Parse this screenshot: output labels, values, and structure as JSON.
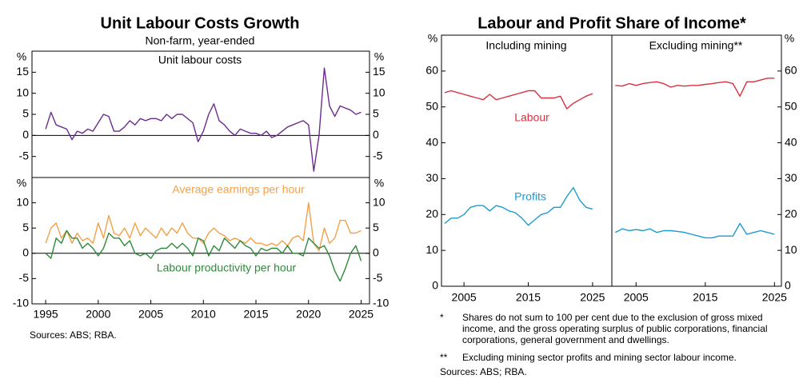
{
  "chart_data": [
    {
      "type": "line",
      "title": "Unit Labour Costs Growth",
      "subtitle": "Non-farm, year-ended",
      "y_unit": "%",
      "xlim": [
        1993.7,
        2025.8
      ],
      "ylim": [
        -10,
        20
      ],
      "yticks": [
        -5,
        0,
        5,
        10,
        15
      ],
      "x": [
        1995,
        1995.5,
        1996,
        1996.5,
        1997,
        1997.5,
        1998,
        1998.5,
        1999,
        1999.5,
        2000,
        2000.5,
        2001,
        2001.5,
        2002,
        2002.5,
        2003,
        2003.5,
        2004,
        2004.5,
        2005,
        2005.5,
        2006,
        2006.5,
        2007,
        2007.5,
        2008,
        2008.5,
        2009,
        2009.5,
        2010,
        2010.5,
        2011,
        2011.5,
        2012,
        2012.5,
        2013,
        2013.5,
        2014,
        2014.5,
        2015,
        2015.5,
        2016,
        2016.5,
        2017,
        2017.5,
        2018,
        2018.5,
        2019,
        2019.5,
        2020,
        2020.5,
        2021,
        2021.5,
        2022,
        2022.5,
        2023,
        2023.5,
        2024,
        2024.5,
        2025
      ],
      "series": [
        {
          "name": "Unit labour costs",
          "color": "#6a2c8e",
          "values": [
            1.5,
            5.5,
            2.5,
            2,
            1.5,
            -1,
            1,
            0.5,
            1.5,
            1,
            3,
            5,
            4.5,
            1,
            1,
            2,
            3.5,
            2.5,
            4,
            3.5,
            4,
            4,
            3.5,
            5,
            4,
            5,
            5,
            4,
            3,
            -1.5,
            1,
            5,
            7.5,
            3.5,
            2.5,
            1,
            0,
            1.5,
            1,
            0.5,
            0.5,
            0,
            1,
            -0.5,
            0,
            1,
            2,
            2.5,
            3,
            3.5,
            2.5,
            -8.5,
            0,
            16,
            7,
            4.5,
            7,
            6.5,
            6,
            5,
            5.5
          ]
        }
      ]
    },
    {
      "type": "line",
      "y_unit": "%",
      "source": "Sources: ABS; RBA.",
      "xlim": [
        1993.7,
        2025.8
      ],
      "xticks": [
        1995,
        2000,
        2005,
        2010,
        2015,
        2020,
        2025
      ],
      "ylim": [
        -10,
        15
      ],
      "yticks": [
        -10,
        -5,
        0,
        5,
        10
      ],
      "x": [
        1995,
        1995.5,
        1996,
        1996.5,
        1997,
        1997.5,
        1998,
        1998.5,
        1999,
        1999.5,
        2000,
        2000.5,
        2001,
        2001.5,
        2002,
        2002.5,
        2003,
        2003.5,
        2004,
        2004.5,
        2005,
        2005.5,
        2006,
        2006.5,
        2007,
        2007.5,
        2008,
        2008.5,
        2009,
        2009.5,
        2010,
        2010.5,
        2011,
        2011.5,
        2012,
        2012.5,
        2013,
        2013.5,
        2014,
        2014.5,
        2015,
        2015.5,
        2016,
        2016.5,
        2017,
        2017.5,
        2018,
        2018.5,
        2019,
        2019.5,
        2020,
        2020.5,
        2021,
        2021.5,
        2022,
        2022.5,
        2023,
        2023.5,
        2024,
        2024.5,
        2025
      ],
      "series": [
        {
          "name": "Average earnings per hour",
          "color": "#f4a04a",
          "values": [
            2,
            5,
            6,
            3,
            4.5,
            2,
            4,
            2.5,
            3,
            2,
            6,
            3,
            7.5,
            4,
            3.5,
            5,
            3,
            6,
            3.5,
            5,
            4,
            3,
            5,
            3.5,
            5,
            4,
            6,
            4,
            3,
            3,
            2,
            4,
            5,
            4,
            3.5,
            2.5,
            3,
            2.5,
            2,
            3,
            2,
            2,
            1.5,
            2,
            1.5,
            2.5,
            1.5,
            3,
            3.5,
            2.5,
            10,
            2,
            0.5,
            5,
            2,
            3,
            6.5,
            6.5,
            4,
            4,
            4.5
          ]
        },
        {
          "name": "Labour productivity per hour",
          "color": "#2e8b3a",
          "values": [
            0,
            -1,
            3,
            2,
            4.5,
            3,
            3,
            1,
            2,
            1,
            -0.5,
            1,
            4,
            3,
            3,
            1.5,
            2.5,
            0,
            -0.5,
            0,
            -1,
            0.5,
            1,
            1,
            2,
            1,
            2,
            1,
            -0.5,
            3,
            2.5,
            -0.5,
            1.5,
            0.5,
            3,
            2,
            1,
            2.5,
            1.5,
            1,
            -0.5,
            1,
            0.5,
            1,
            1,
            0,
            1.5,
            0,
            0,
            -0.5,
            3,
            2,
            1,
            1.5,
            -0.5,
            -3.5,
            -5.5,
            -3,
            0,
            1.5,
            -1.5
          ]
        }
      ]
    },
    {
      "type": "line",
      "title": "Labour and Profit Share of Income*",
      "panel_title": "Including mining",
      "y_unit": "%",
      "xlim": [
        2001.5,
        2028
      ],
      "xticks": [
        2005,
        2015,
        2025
      ],
      "ylim": [
        0,
        70
      ],
      "yticks": [
        0,
        10,
        20,
        30,
        40,
        50,
        60
      ],
      "x": [
        2002,
        2003,
        2004,
        2005,
        2006,
        2007,
        2008,
        2009,
        2010,
        2011,
        2012,
        2013,
        2014,
        2015,
        2016,
        2017,
        2018,
        2019,
        2020,
        2021,
        2022,
        2023,
        2024,
        2025
      ],
      "series": [
        {
          "name": "Labour",
          "color": "#d6313d",
          "values": [
            54,
            54.5,
            54,
            53.5,
            53,
            52.5,
            52,
            53.5,
            52,
            52.5,
            53,
            53.5,
            54,
            54.5,
            54.5,
            52.5,
            52.5,
            52.5,
            53,
            49.5,
            51,
            52,
            53,
            53.7
          ]
        },
        {
          "name": "Profits",
          "color": "#1a9bcf",
          "values": [
            17.5,
            19,
            19,
            20,
            22,
            22.5,
            22.5,
            21,
            22.5,
            22,
            21,
            20.5,
            19,
            17,
            18.5,
            20,
            20.5,
            22,
            22,
            25,
            27.5,
            24,
            22,
            21.5
          ]
        }
      ]
    },
    {
      "type": "line",
      "panel_title": "Excluding mining**",
      "y_unit": "%",
      "xlim": [
        2001.5,
        2026
      ],
      "xticks": [
        2005,
        2015,
        2025
      ],
      "ylim": [
        0,
        70
      ],
      "yticks": [
        0,
        10,
        20,
        30,
        40,
        50,
        60
      ],
      "x": [
        2002,
        2003,
        2004,
        2005,
        2006,
        2007,
        2008,
        2009,
        2010,
        2011,
        2012,
        2013,
        2014,
        2015,
        2016,
        2017,
        2018,
        2019,
        2020,
        2021,
        2022,
        2023,
        2024,
        2025
      ],
      "series": [
        {
          "color": "#d6313d",
          "values": [
            56,
            55.8,
            56.5,
            56,
            56.5,
            56.8,
            57,
            56.5,
            55.5,
            56,
            55.8,
            56,
            56,
            56.3,
            56.5,
            56.8,
            57,
            56.5,
            53,
            57,
            57,
            57.5,
            58,
            58
          ]
        },
        {
          "color": "#1a9bcf",
          "values": [
            15,
            16,
            15.5,
            15.8,
            15.5,
            16,
            15,
            15.5,
            15.5,
            15.3,
            15,
            14.5,
            14,
            13.5,
            13.5,
            14,
            14,
            14,
            17.5,
            14.5,
            15,
            15.5,
            15,
            14.5
          ]
        }
      ],
      "notes": [
        {
          "mark": "*",
          "text": "Shares do not sum to 100 per cent due to the exclusion of gross mixed income, and the gross operating surplus of public corporations, financial corporations, general government and dwellings."
        },
        {
          "mark": "**",
          "text": "Excluding mining sector profits and mining sector labour income."
        }
      ],
      "source": "Sources: ABS; RBA."
    }
  ]
}
